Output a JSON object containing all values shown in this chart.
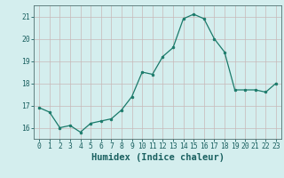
{
  "x": [
    0,
    1,
    2,
    3,
    4,
    5,
    6,
    7,
    8,
    9,
    10,
    11,
    12,
    13,
    14,
    15,
    16,
    17,
    18,
    19,
    20,
    21,
    22,
    23
  ],
  "y": [
    16.9,
    16.7,
    16.0,
    16.1,
    15.8,
    16.2,
    16.3,
    16.4,
    16.8,
    17.4,
    18.5,
    18.4,
    19.2,
    19.6,
    20.9,
    21.1,
    20.9,
    20.0,
    19.4,
    17.7,
    17.7,
    17.7,
    17.6,
    18.0
  ],
  "xlabel": "Humidex (Indice chaleur)",
  "ylim": [
    15.5,
    21.5
  ],
  "xlim": [
    -0.5,
    23.5
  ],
  "yticks": [
    16,
    17,
    18,
    19,
    20,
    21
  ],
  "xticks": [
    0,
    1,
    2,
    3,
    4,
    5,
    6,
    7,
    8,
    9,
    10,
    11,
    12,
    13,
    14,
    15,
    16,
    17,
    18,
    19,
    20,
    21,
    22,
    23
  ],
  "line_color": "#1a7a6a",
  "marker_color": "#1a7a6a",
  "bg_color": "#d4eeee",
  "grid_color": "#c8b8b8",
  "axis_color": "#507070",
  "tick_label_color": "#1a6060",
  "xlabel_color": "#1a6060",
  "tick_fontsize": 5.8,
  "xlabel_fontsize": 7.5
}
